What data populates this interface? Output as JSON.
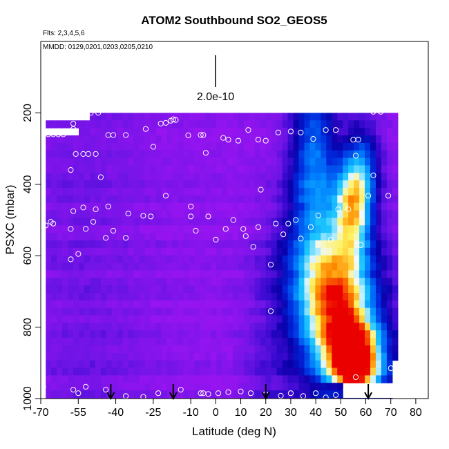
{
  "chart_data": {
    "type": "heatmap",
    "title": "ATOM2 Southbound SO2_GEOS5",
    "flights_label": "Flts: 2,3,4,5,6",
    "dates_label": "MMDD: 0129,0201,0203,0205,0210",
    "scale_label": "2.0e-10",
    "xlabel": "Latitude (deg N)",
    "ylabel": "PSXC (mbar)",
    "xlim": [
      -70,
      85
    ],
    "ylim": [
      1000,
      0
    ],
    "x_ticks": [
      -70,
      -55,
      -40,
      -25,
      -10,
      0,
      10,
      20,
      30,
      40,
      50,
      60,
      70,
      80
    ],
    "x_tick_labels": [
      "-70",
      "-55",
      "-40",
      "-25",
      "-10",
      "0",
      "10",
      "20",
      "30",
      "40",
      "50",
      "60",
      "70",
      "80"
    ],
    "y_ticks": [
      200,
      400,
      600,
      800,
      1000
    ],
    "y_tick_labels": [
      "200",
      "400",
      "600",
      "800",
      "1000"
    ],
    "profile_arrows_lat": [
      -42,
      -17,
      20,
      61
    ],
    "hotspot": {
      "lat": 57,
      "pressure": 900
    }
  }
}
